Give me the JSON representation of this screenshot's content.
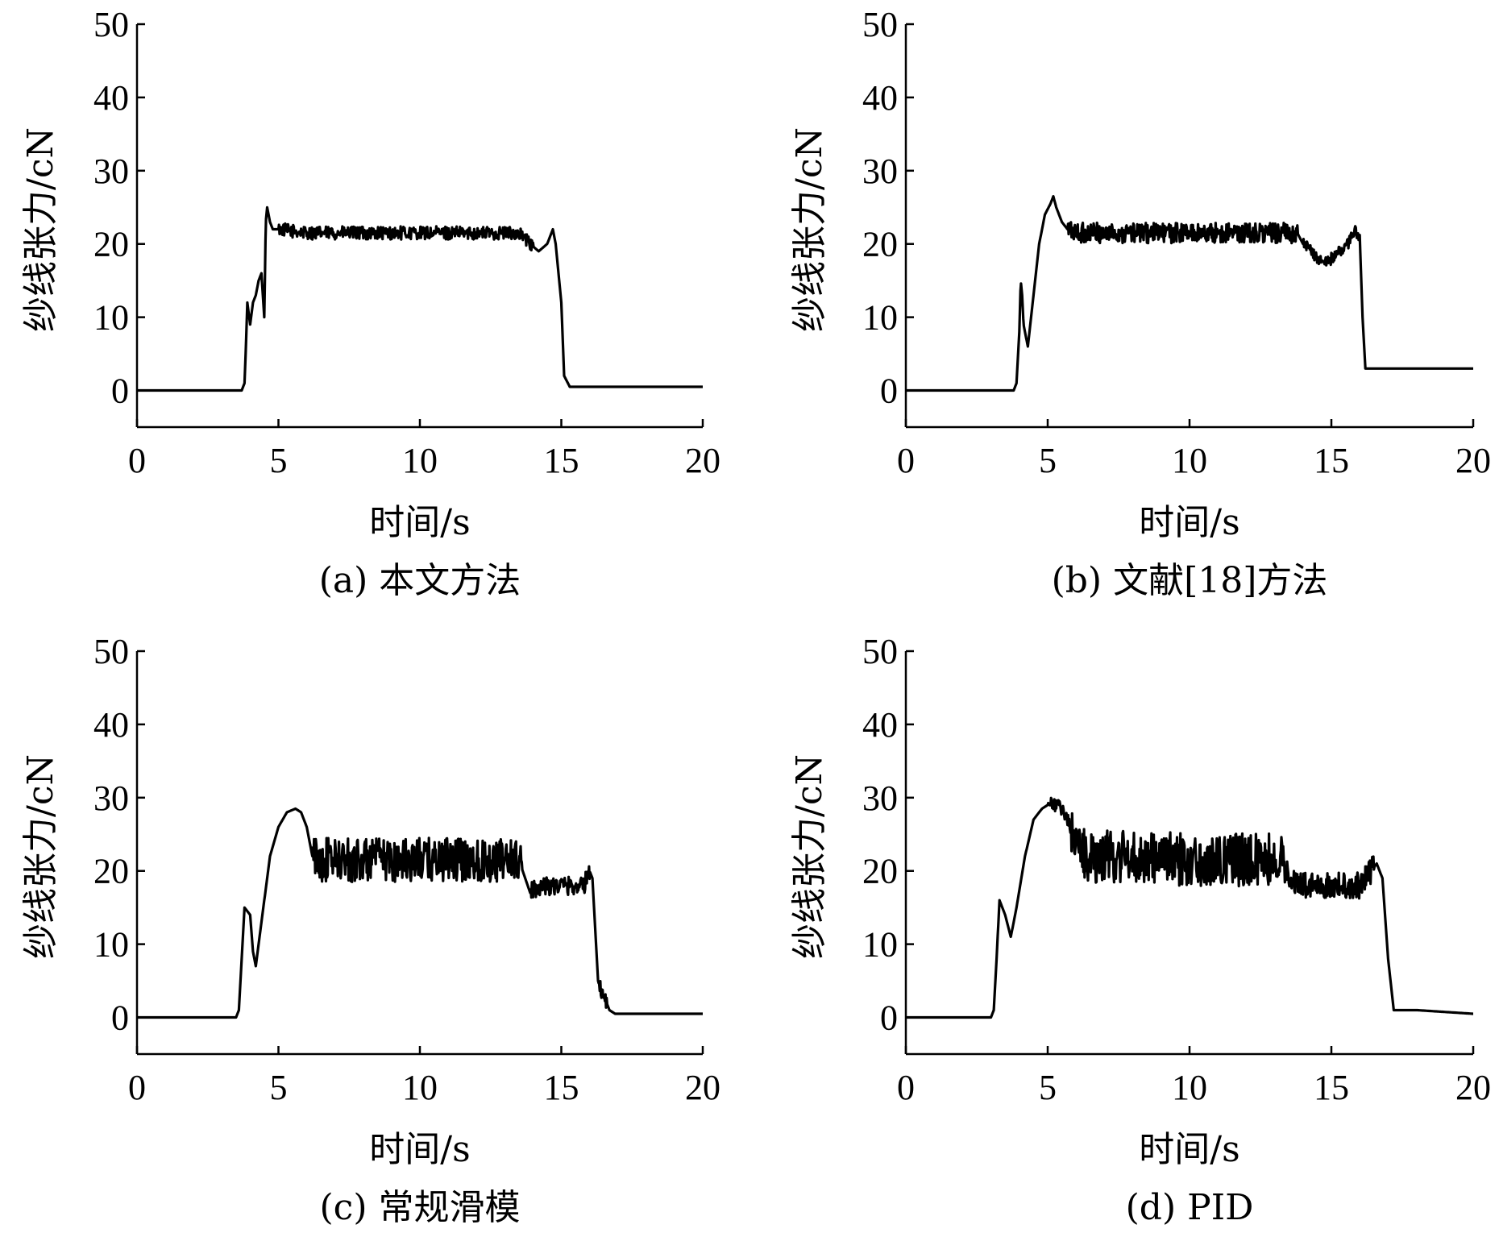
{
  "chart_data": [
    {
      "type": "line",
      "caption": "(a) 本文方法",
      "xlabel": "时间/s",
      "ylabel": "纱线张力/cN",
      "xlim": [
        0,
        20
      ],
      "ylim": [
        -5,
        50
      ],
      "xticks": [
        0,
        5,
        10,
        15,
        20
      ],
      "yticks": [
        0,
        10,
        20,
        30,
        40,
        50
      ],
      "grid": false,
      "series": [
        {
          "x": [
            0,
            3.7,
            3.8,
            3.85,
            3.9,
            4.0,
            4.1,
            4.2,
            4.3,
            4.4,
            4.5,
            4.55,
            4.6,
            4.7,
            4.8,
            5,
            6,
            8,
            10,
            12,
            13.5,
            13.9,
            14.2,
            14.5,
            14.7,
            14.8,
            15.0,
            15.1,
            15.3,
            16,
            18,
            20
          ],
          "y": [
            0,
            0,
            1,
            6,
            12,
            9,
            12,
            13,
            15,
            16,
            10,
            23,
            25,
            23,
            22,
            22,
            21.5,
            21.5,
            21.5,
            21.5,
            21.5,
            20,
            19,
            20,
            22,
            20,
            12,
            2,
            0.5,
            0.5,
            0.5,
            0.5
          ],
          "noise": [
            [
              5,
              14,
              0.9
            ]
          ]
        }
      ]
    },
    {
      "type": "line",
      "caption": "(b) 文献[18]方法",
      "xlabel": "时间/s",
      "ylabel": "纱线张力/cN",
      "xlim": [
        0,
        20
      ],
      "ylim": [
        -5,
        50
      ],
      "xticks": [
        0,
        5,
        10,
        15,
        20
      ],
      "yticks": [
        0,
        10,
        20,
        30,
        40,
        50
      ],
      "grid": false,
      "series": [
        {
          "x": [
            0,
            3.8,
            3.9,
            4.0,
            4.05,
            4.1,
            4.15,
            4.3,
            4.5,
            4.7,
            4.9,
            5.1,
            5.2,
            5.3,
            5.5,
            5.7,
            6,
            8,
            10,
            12,
            13.5,
            13.8,
            14.0,
            14.3,
            14.5,
            14.8,
            15.0,
            15.3,
            15.6,
            15.8,
            16.0,
            16.1,
            16.2,
            18,
            20
          ],
          "y": [
            0,
            0,
            1,
            8,
            15,
            13,
            9,
            6,
            13,
            20,
            24,
            25.5,
            26.5,
            25,
            23,
            22,
            21.5,
            21.5,
            21.5,
            21.5,
            21.5,
            21.5,
            20,
            19,
            18,
            17.5,
            18,
            19,
            20,
            22,
            21,
            10,
            3,
            3,
            3
          ],
          "noise": [
            [
              5.7,
              13.8,
              1.4
            ],
            [
              14,
              16,
              0.8
            ]
          ]
        }
      ]
    },
    {
      "type": "line",
      "caption": "(c) 常规滑模",
      "xlabel": "时间/s",
      "ylabel": "纱线张力/cN",
      "xlim": [
        0,
        20
      ],
      "ylim": [
        -5,
        50
      ],
      "xticks": [
        0,
        5,
        10,
        15,
        20
      ],
      "yticks": [
        0,
        10,
        20,
        30,
        40,
        50
      ],
      "grid": false,
      "series": [
        {
          "x": [
            0,
            3.5,
            3.6,
            3.7,
            3.8,
            3.9,
            4.0,
            4.1,
            4.2,
            4.3,
            4.5,
            4.7,
            5.0,
            5.3,
            5.6,
            5.8,
            6.0,
            6.2,
            6.5,
            8,
            10,
            12,
            13.5,
            13.9,
            14.2,
            15,
            15.8,
            16.0,
            16.1,
            16.2,
            16.3,
            16.5,
            16.7,
            16.9,
            18,
            20
          ],
          "y": [
            0,
            0,
            1,
            8,
            15,
            14.5,
            14,
            9,
            7,
            10,
            16,
            22,
            26,
            28,
            28.5,
            28,
            26,
            22,
            21.5,
            21.5,
            21.5,
            21.5,
            21.5,
            17,
            18,
            18,
            18,
            20,
            19,
            12,
            5,
            3,
            1,
            0.5,
            0.5,
            0.5
          ],
          "noise": [
            [
              6.2,
              13.6,
              3.0
            ],
            [
              13.9,
              16,
              1.3
            ],
            [
              16.3,
              16.6,
              1.2
            ]
          ]
        }
      ]
    },
    {
      "type": "line",
      "caption": "(d) PID",
      "xlabel": "时间/s",
      "ylabel": "纱线张力/cN",
      "xlim": [
        0,
        20
      ],
      "ylim": [
        -5,
        50
      ],
      "xticks": [
        0,
        5,
        10,
        15,
        20
      ],
      "yticks": [
        0,
        10,
        20,
        30,
        40,
        50
      ],
      "grid": false,
      "series": [
        {
          "x": [
            0,
            3.0,
            3.1,
            3.2,
            3.3,
            3.4,
            3.5,
            3.7,
            3.9,
            4.2,
            4.5,
            4.8,
            5.0,
            5.3,
            5.6,
            5.8,
            6.0,
            6.3,
            8,
            10,
            12,
            13.2,
            13.5,
            14,
            15,
            16,
            16.4,
            16.6,
            16.8,
            17.0,
            17.2,
            18,
            20
          ],
          "y": [
            0,
            0,
            1,
            8,
            16,
            15,
            14,
            11,
            15,
            22,
            27,
            28.5,
            29,
            29,
            28,
            26,
            24,
            22,
            22,
            21.5,
            21.5,
            21.5,
            19,
            18,
            18,
            18,
            20,
            21,
            19,
            8,
            1,
            1,
            0.5
          ],
          "noise": [
            [
              5,
              5.8,
              1.0
            ],
            [
              5.8,
              13.3,
              3.6
            ],
            [
              13.3,
              16.5,
              1.8
            ]
          ]
        }
      ]
    }
  ]
}
